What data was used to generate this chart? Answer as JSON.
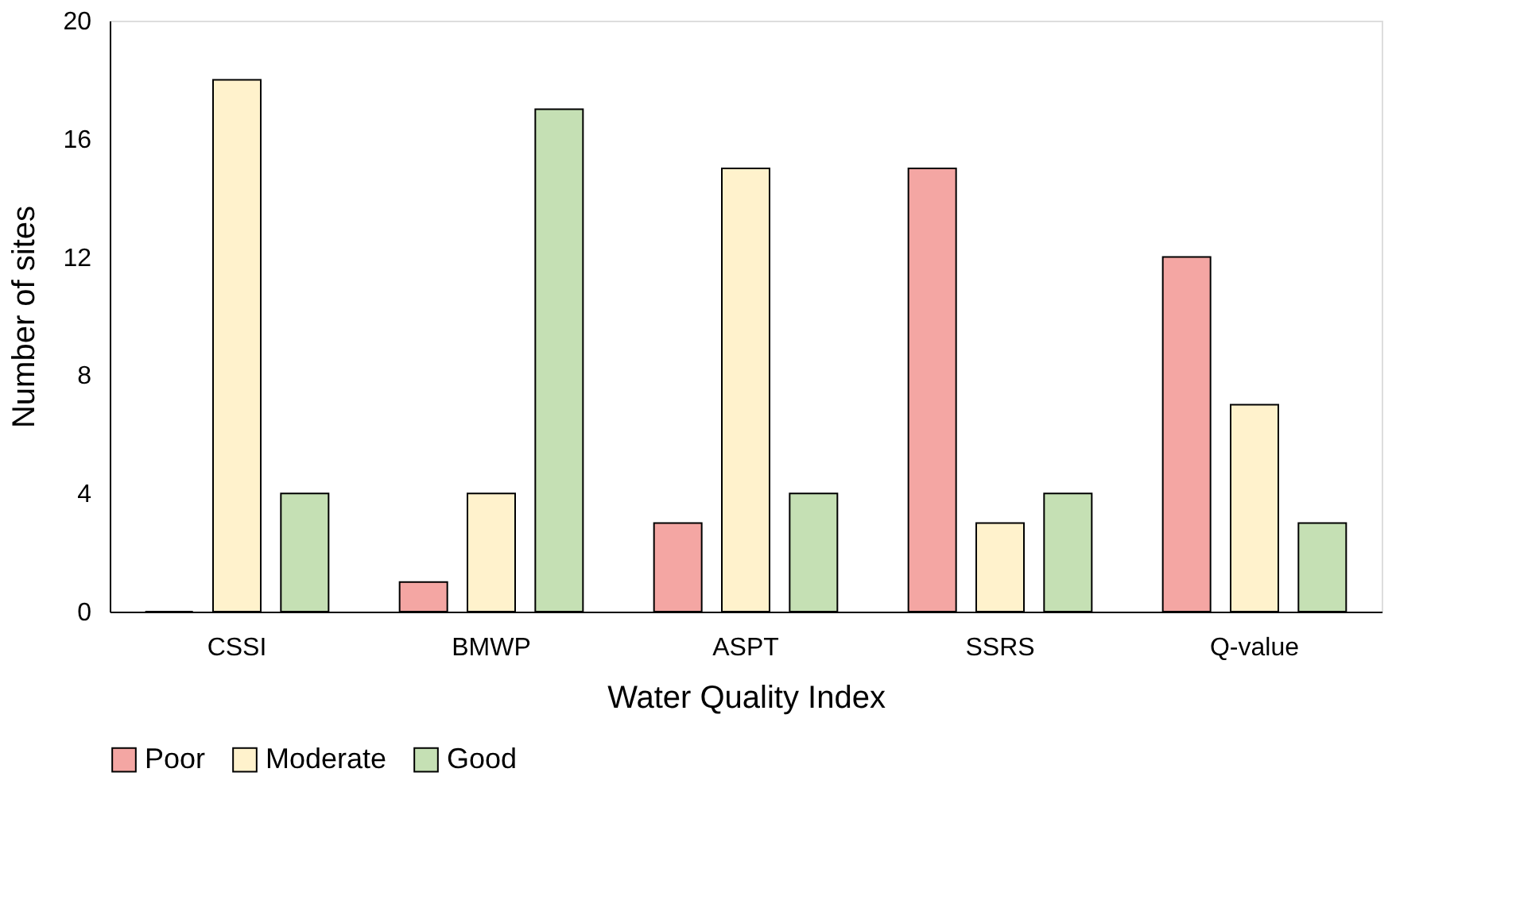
{
  "chart_data": {
    "type": "bar",
    "xlabel": "Water Quality Index",
    "ylabel": "Number of sites",
    "categories": [
      "CSSI",
      "BMWP",
      "ASPT",
      "SSRS",
      "Q-value"
    ],
    "series": [
      {
        "name": "Poor",
        "color": "#f4a6a3",
        "values": [
          0,
          1,
          3,
          15,
          12
        ]
      },
      {
        "name": "Moderate",
        "color": "#fff2cc",
        "values": [
          18,
          4,
          15,
          3,
          7
        ]
      },
      {
        "name": "Good",
        "color": "#c5e0b4",
        "values": [
          4,
          17,
          4,
          4,
          3
        ]
      }
    ],
    "ylim": [
      0,
      20
    ],
    "yticks": [
      0,
      4,
      8,
      12,
      16,
      20
    ],
    "grid": false,
    "legend": "bottom"
  }
}
